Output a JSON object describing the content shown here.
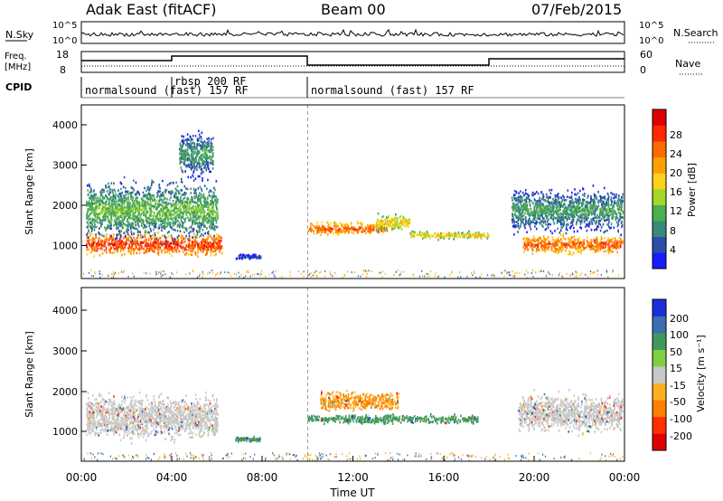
{
  "header": {
    "station": "Adak East (fitACF)",
    "beam": "Beam 00",
    "date": "07/Feb/2015"
  },
  "noise_panel": {
    "left_label": "N.Sky",
    "left_ticks": [
      "10^5",
      "10^0"
    ],
    "right_ticks": [
      "10^5",
      "10^0"
    ],
    "right_label": "N.Search"
  },
  "freq_panel": {
    "left_label_1": "Freq.",
    "left_label_2": "[MHz]",
    "left_ticks": [
      "18",
      "8"
    ],
    "right_ticks": [
      "60",
      "0"
    ],
    "right_label": "Nave"
  },
  "cpid_panel": {
    "label": "CPID",
    "segments": [
      {
        "text": "normalsound (fast) 157 RF"
      },
      {
        "text": "rbsp 200 RF"
      },
      {
        "text": "normalsound (fast) 157 RF"
      }
    ]
  },
  "power_panel": {
    "ylabel": "Slant Range [km]",
    "yticks": [
      "1000",
      "2000",
      "3000",
      "4000"
    ],
    "colorbar_label": "Power [dB]",
    "colorbar_ticks": [
      "4",
      "8",
      "12",
      "16",
      "20",
      "24",
      "28"
    ],
    "colors": [
      "#1a1aff",
      "#2b4ea8",
      "#3a8a7a",
      "#4caf50",
      "#a5d62a",
      "#ffd21a",
      "#ffa000",
      "#ff6a00",
      "#ff2a00",
      "#e00000"
    ]
  },
  "velocity_panel": {
    "ylabel": "Slant Range [km]",
    "yticks": [
      "1000",
      "2000",
      "3000",
      "4000"
    ],
    "colorbar_label": "Velocity [m s⁻¹]",
    "colorbar_ticks": [
      "200",
      "100",
      "50",
      "15",
      "-15",
      "-50",
      "-100",
      "-200"
    ],
    "colors": [
      "#1a2fd8",
      "#3a6fb0",
      "#3f9a5a",
      "#7fd040",
      "#c8c8c8",
      "#ffb020",
      "#ff8000",
      "#ff3000",
      "#e00000"
    ]
  },
  "x_axis": {
    "ticks": [
      "00:00",
      "04:00",
      "08:00",
      "12:00",
      "16:00",
      "20:00",
      "00:00"
    ],
    "label": "Time UT"
  },
  "chart_data": [
    {
      "type": "heatmap",
      "title": "Adak East (fitACF) Beam 00 07/Feb/2015",
      "xlabel": "Time UT",
      "ylabel": "Slant Range [km]",
      "xlim": [
        0,
        24
      ],
      "ylim": [
        180,
        4500
      ],
      "colorbar": {
        "label": "Power [dB]",
        "range": [
          0,
          30
        ]
      },
      "echo_regions": [
        {
          "t_start": 0.2,
          "t_end": 6.2,
          "range_center_km": 1050,
          "range_spread_km": 350,
          "power_db": 26
        },
        {
          "t_start": 0.2,
          "t_end": 6.0,
          "range_center_km": 1900,
          "range_spread_km": 900,
          "power_db": 12
        },
        {
          "t_start": 4.3,
          "t_end": 5.8,
          "range_center_km": 3300,
          "range_spread_km": 700,
          "power_db": 10
        },
        {
          "t_start": 6.8,
          "t_end": 7.9,
          "range_center_km": 750,
          "range_spread_km": 80,
          "power_db": 6
        },
        {
          "t_start": 10.0,
          "t_end": 13.5,
          "range_center_km": 1450,
          "range_spread_km": 200,
          "power_db": 24
        },
        {
          "t_start": 13.0,
          "t_end": 14.5,
          "range_center_km": 1600,
          "range_spread_km": 250,
          "power_db": 18
        },
        {
          "t_start": 14.5,
          "t_end": 18.0,
          "range_center_km": 1280,
          "range_spread_km": 120,
          "power_db": 18
        },
        {
          "t_start": 19.5,
          "t_end": 23.9,
          "range_center_km": 1050,
          "range_spread_km": 300,
          "power_db": 24
        },
        {
          "t_start": 19.0,
          "t_end": 23.9,
          "range_center_km": 1900,
          "range_spread_km": 700,
          "power_db": 10
        }
      ]
    },
    {
      "type": "heatmap",
      "xlabel": "Time UT",
      "ylabel": "Slant Range [km]",
      "xlim": [
        0,
        24
      ],
      "ylim": [
        180,
        4500
      ],
      "colorbar": {
        "label": "Velocity [m s⁻¹]",
        "range": [
          -200,
          200
        ]
      },
      "echo_regions": [
        {
          "t_start": 0.2,
          "t_end": 6.0,
          "range_center_km": 1300,
          "range_spread_km": 700,
          "velocity": 0
        },
        {
          "t_start": 6.8,
          "t_end": 7.9,
          "range_center_km": 750,
          "range_spread_km": 80,
          "velocity": 50
        },
        {
          "t_start": 10.5,
          "t_end": 14.0,
          "range_center_km": 1700,
          "range_spread_km": 300,
          "velocity": -50
        },
        {
          "t_start": 10.0,
          "t_end": 17.5,
          "range_center_km": 1250,
          "range_spread_km": 150,
          "velocity": 50
        },
        {
          "t_start": 19.3,
          "t_end": 23.9,
          "range_center_km": 1400,
          "range_spread_km": 600,
          "velocity": 0
        }
      ]
    }
  ]
}
